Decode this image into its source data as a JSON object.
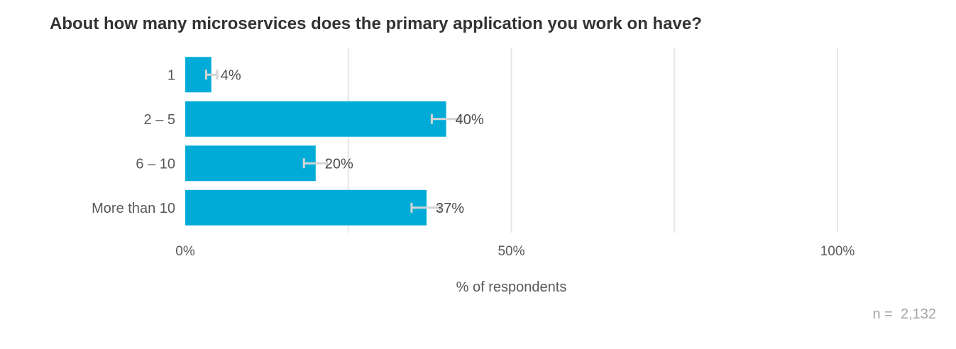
{
  "chart_data": {
    "type": "bar",
    "orientation": "horizontal",
    "title": "About how many microservices does the primary application you work on have?",
    "xlabel": "% of respondents",
    "ylabel": "",
    "categories": [
      "1",
      "2 – 5",
      "6 – 10",
      "More than 10"
    ],
    "values": [
      4,
      40,
      20,
      37
    ],
    "value_labels": [
      "4%",
      "40%",
      "20%",
      "37%"
    ],
    "error_bars": [
      {
        "low": 3.2,
        "high": 4.9
      },
      {
        "low": 37.8,
        "high": 42.1
      },
      {
        "low": 18.2,
        "high": 21.7
      },
      {
        "low": 34.7,
        "high": 39.0
      }
    ],
    "xlim": [
      0,
      100
    ],
    "xticks": [
      0,
      50,
      100
    ],
    "xtick_labels": [
      "0%",
      "50%",
      "100%"
    ],
    "grid": true,
    "legend": "none",
    "bar_color": "#00acd7",
    "error_color": "#d4d4d4",
    "grid_color": "#e6e6e6"
  },
  "footnote": "n =  2,132"
}
